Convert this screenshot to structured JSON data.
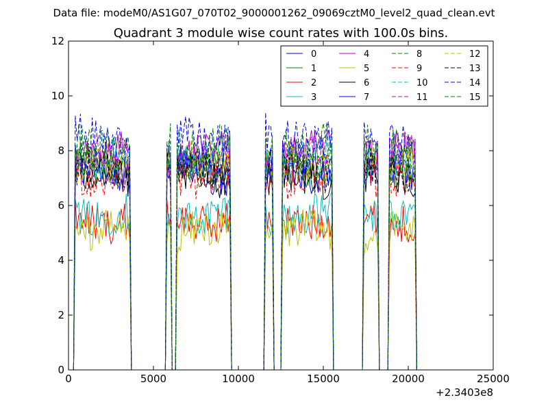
{
  "header": {
    "data_file": "Data file: modeM0/AS1G07_070T02_9000001262_09069cztM0_level2_quad_clean.evt"
  },
  "chart_data": {
    "type": "line",
    "title": "Quadrant 3 module wise count rates with 100.0s bins.",
    "xlabel": "",
    "ylabel": "",
    "x_offset_label": "+2.3403e8",
    "xlim": [
      0,
      25000
    ],
    "ylim": [
      0,
      12
    ],
    "x_ticks": [
      0,
      5000,
      10000,
      15000,
      20000,
      25000
    ],
    "x_tick_labels": [
      "0",
      "5000",
      "10000",
      "15000",
      "20000",
      "25000"
    ],
    "y_ticks": [
      0,
      2,
      4,
      6,
      8,
      10,
      12
    ],
    "y_tick_labels": [
      "0",
      "2",
      "4",
      "6",
      "8",
      "10",
      "12"
    ],
    "grid": false,
    "legend_position": "top-right",
    "legend_columns": 4,
    "bin_width": 100,
    "active_segments": [
      [
        400,
        3650
      ],
      [
        5750,
        6050
      ],
      [
        6350,
        9550
      ],
      [
        11550,
        12050
      ],
      [
        12600,
        15500
      ],
      [
        17350,
        18250
      ],
      [
        18900,
        20450
      ]
    ],
    "series": [
      {
        "name": "0",
        "color": "#0000ff",
        "dash": "solid",
        "level": 7.5
      },
      {
        "name": "1",
        "color": "#008000",
        "dash": "solid",
        "level": 7.4
      },
      {
        "name": "2",
        "color": "#ff0000",
        "dash": "solid",
        "level": 5.5
      },
      {
        "name": "3",
        "color": "#00bfbf",
        "dash": "solid",
        "level": 5.7
      },
      {
        "name": "4",
        "color": "#bf00bf",
        "dash": "solid",
        "level": 7.9
      },
      {
        "name": "5",
        "color": "#bfbf00",
        "dash": "solid",
        "level": 5.0
      },
      {
        "name": "6",
        "color": "#000000",
        "dash": "solid",
        "level": 7.0
      },
      {
        "name": "7",
        "color": "#0000ff",
        "dash": "solid",
        "level": 7.2
      },
      {
        "name": "8",
        "color": "#008000",
        "dash": "dashed",
        "level": 7.6
      },
      {
        "name": "9",
        "color": "#ff0000",
        "dash": "dashed",
        "level": 7.1
      },
      {
        "name": "10",
        "color": "#00bfbf",
        "dash": "dashed",
        "level": 7.7
      },
      {
        "name": "11",
        "color": "#bf00bf",
        "dash": "dashed",
        "level": 7.8
      },
      {
        "name": "12",
        "color": "#bfbf00",
        "dash": "dashed",
        "level": 7.5
      },
      {
        "name": "13",
        "color": "#000000",
        "dash": "dashed",
        "level": 7.3
      },
      {
        "name": "14",
        "color": "#0000ff",
        "dash": "dashed",
        "level": 8.5
      },
      {
        "name": "15",
        "color": "#008000",
        "dash": "dashed",
        "level": 8.3
      }
    ]
  }
}
